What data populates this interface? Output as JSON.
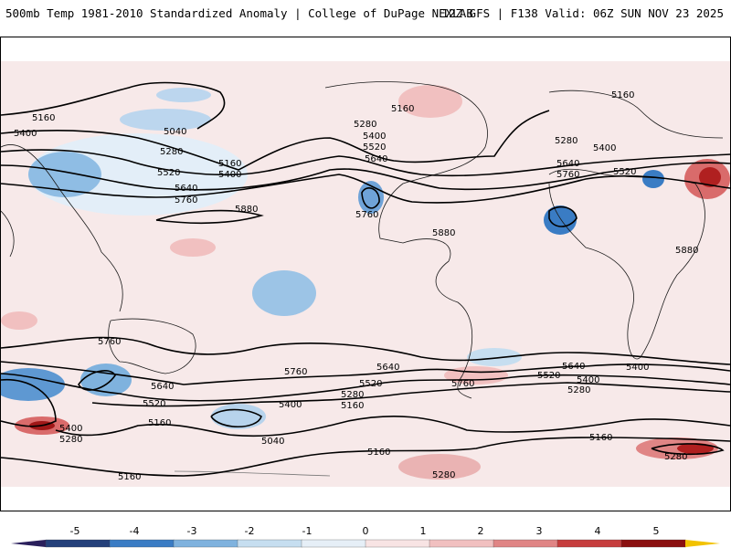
{
  "header": {
    "title": "500mb Temp 1981-2010 Standardized Anomaly | College of DuPage NEXLAB",
    "run_info": "12Z GFS | F138 Valid: 06Z SUN NOV 23 2025"
  },
  "map": {
    "contour_labels": [
      "5160",
      "5400",
      "5040",
      "5280",
      "5160",
      "5400",
      "5520",
      "5640",
      "5760",
      "5880",
      "5280",
      "5400",
      "5520",
      "5640",
      "5760",
      "5880",
      "5160",
      "5280",
      "5400",
      "5640",
      "5760",
      "5520",
      "5160",
      "5880",
      "5760",
      "5640",
      "5520",
      "5400",
      "5280",
      "5160",
      "5040",
      "5760",
      "5640",
      "5520",
      "5400",
      "5280",
      "5160",
      "5760",
      "5640",
      "5520",
      "5400",
      "5280",
      "5160",
      "5160",
      "5280",
      "5160",
      "5280",
      "5400"
    ],
    "colors": {
      "contour": "#000000",
      "coast": "#1a1a1a",
      "border": "#555555"
    }
  },
  "colorbar": {
    "labels": [
      "-5",
      "-4",
      "-3",
      "-2",
      "-1",
      "0",
      "1",
      "2",
      "3",
      "4",
      "5"
    ],
    "colors": [
      "#2a1f5c",
      "#24407a",
      "#3a7cc4",
      "#7fb2de",
      "#c6def0",
      "#e6eff7",
      "#f8e4e4",
      "#f1c0c0",
      "#e08585",
      "#c63d3d",
      "#8b1010",
      "#f2c200"
    ]
  }
}
